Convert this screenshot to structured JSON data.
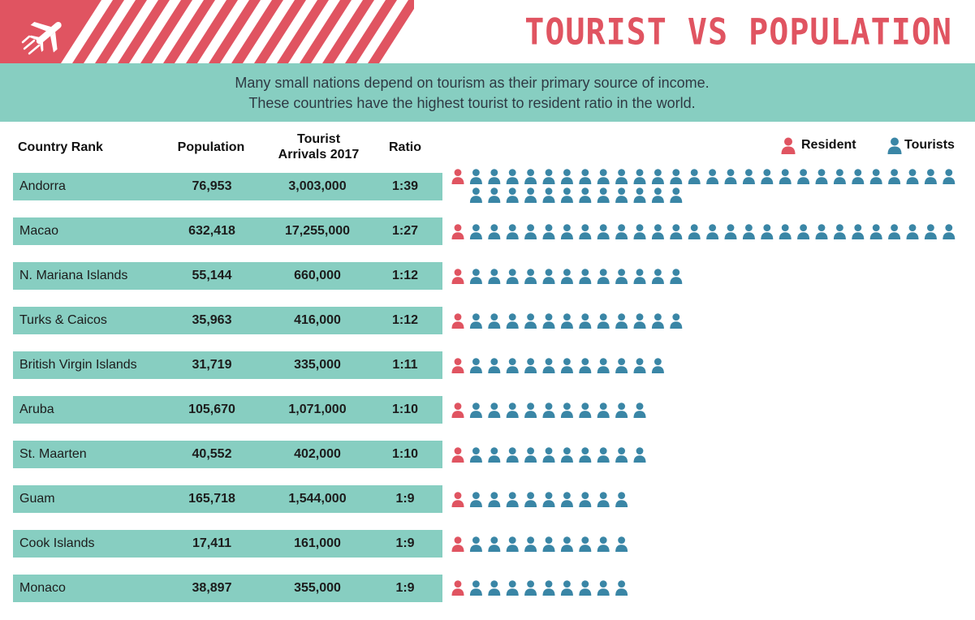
{
  "header": {
    "title": "TOURIST VS POPULATION",
    "subtitle_line1": "Many small nations depend on tourism as their primary source of income.",
    "subtitle_line2": "These countries have the highest tourist to resident ratio in the world.",
    "logo_icon": "airplane-icon"
  },
  "columns": {
    "country": "Country Rank",
    "population": "Population",
    "tourist_line1": "Tourist",
    "tourist_line2": "Arrivals 2017",
    "ratio": "Ratio"
  },
  "legend": {
    "resident": "Resident",
    "tourists": "Tourists"
  },
  "colors": {
    "accent_red": "#e05461",
    "teal": "#87cec1",
    "resident_icon": "#e05461",
    "tourist_icon": "#3a86a6"
  },
  "chart_data": {
    "type": "table",
    "title": "TOURIST VS POPULATION",
    "rows": [
      {
        "country": "Andorra",
        "population": "76,953",
        "tourists": "3,003,000",
        "ratio": "1:39",
        "ratio_value": 39
      },
      {
        "country": "Macao",
        "population": "632,418",
        "tourists": "17,255,000",
        "ratio": "1:27",
        "ratio_value": 27
      },
      {
        "country": "N. Mariana Islands",
        "population": "55,144",
        "tourists": "660,000",
        "ratio": "1:12",
        "ratio_value": 12
      },
      {
        "country": "Turks & Caicos",
        "population": "35,963",
        "tourists": "416,000",
        "ratio": "1:12",
        "ratio_value": 12
      },
      {
        "country": "British Virgin Islands",
        "population": "31,719",
        "tourists": "335,000",
        "ratio": "1:11",
        "ratio_value": 11
      },
      {
        "country": "Aruba",
        "population": "105,670",
        "tourists": "1,071,000",
        "ratio": "1:10",
        "ratio_value": 10
      },
      {
        "country": "St. Maarten",
        "population": "40,552",
        "tourists": "402,000",
        "ratio": "1:10",
        "ratio_value": 10
      },
      {
        "country": "Guam",
        "population": "165,718",
        "tourists": "1,544,000",
        "ratio": "1:9",
        "ratio_value": 9
      },
      {
        "country": "Cook Islands",
        "population": "17,411",
        "tourists": "161,000",
        "ratio": "1:9",
        "ratio_value": 9
      },
      {
        "country": "Monaco",
        "population": "38,897",
        "tourists": "355,000",
        "ratio": "1:9",
        "ratio_value": 9
      }
    ]
  }
}
